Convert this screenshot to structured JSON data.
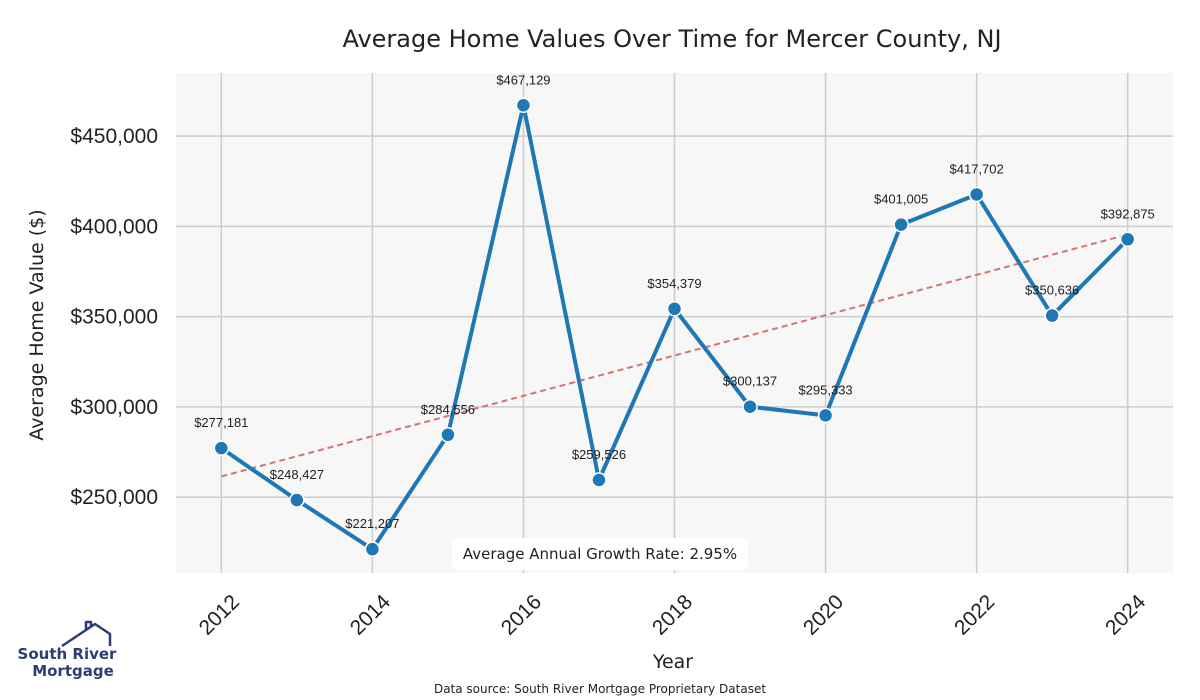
{
  "colors": {
    "line": "#1f77b4",
    "trend": "#d47373",
    "plot_bg": "#f7f7f7",
    "grid": "#cccccc",
    "logo": "#2c3e73"
  },
  "logo": {
    "line1": "South River",
    "line2": "Mortgage",
    "icon": "house-roof-icon"
  },
  "source_text": "Data source: South River Mortgage Proprietary Dataset",
  "growth_annotation": "Average Annual Growth Rate: 2.95%",
  "chart_data": {
    "type": "line",
    "title": "Average Home Values Over Time for Mercer County, NJ",
    "xlabel": "Year",
    "ylabel": "Average Home Value ($)",
    "x": [
      2012,
      2013,
      2014,
      2015,
      2016,
      2017,
      2018,
      2019,
      2020,
      2021,
      2022,
      2023,
      2024
    ],
    "values": [
      277181,
      248427,
      221207,
      284556,
      467129,
      259526,
      354379,
      300137,
      295333,
      401005,
      417702,
      350636,
      392875
    ],
    "data_labels": [
      "$277,181",
      "$248,427",
      "$221,207",
      "$284,556",
      "$467,129",
      "$259,526",
      "$354,379",
      "$300,137",
      "$295,333",
      "$401,005",
      "$417,702",
      "$350,636",
      "$392,875"
    ],
    "xticks": [
      2012,
      2014,
      2016,
      2018,
      2020,
      2022,
      2024
    ],
    "xtick_labels": [
      "2012",
      "2014",
      "2016",
      "2018",
      "2020",
      "2022",
      "2024"
    ],
    "yticks": [
      250000,
      300000,
      350000,
      400000,
      450000
    ],
    "ytick_labels": [
      "$250,000",
      "$300,000",
      "$350,000",
      "$400,000",
      "$450,000"
    ],
    "xlim": [
      2011.4,
      2024.6
    ],
    "ylim": [
      208000,
      485000
    ],
    "trendline": {
      "x": [
        2012,
        2024
      ],
      "y": [
        261500,
        395500
      ],
      "style": "dashed"
    },
    "grid": true
  }
}
